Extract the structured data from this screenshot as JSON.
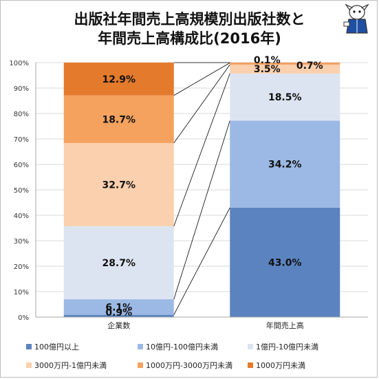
{
  "title": [
    "出版社年間売上高規模別出版社数と",
    "年間売上高構成比(2016年)"
  ],
  "chart_data": {
    "type": "bar",
    "stacked": true,
    "percent_stacked": true,
    "connector_lines": true,
    "categories": [
      "企業数",
      "年間売上高"
    ],
    "ylim": [
      0,
      100
    ],
    "yticks": [
      "0%",
      "10%",
      "20%",
      "30%",
      "40%",
      "50%",
      "60%",
      "70%",
      "80%",
      "90%",
      "100%"
    ],
    "grid": true,
    "legend_position": "bottom",
    "series": [
      {
        "name": "100億円以上",
        "color": "#5b83c0",
        "values": [
          0.9,
          43.0
        ],
        "labels": [
          "0.9%",
          "43.0%"
        ]
      },
      {
        "name": "10億円-100億円未満",
        "color": "#9bb9e4",
        "values": [
          6.1,
          34.2
        ],
        "labels": [
          "6.1%",
          "34.2%"
        ]
      },
      {
        "name": "1億円-10億円未満",
        "color": "#dde4f1",
        "values": [
          28.7,
          18.5
        ],
        "labels": [
          "28.7%",
          "18.5%"
        ]
      },
      {
        "name": "3000万円-1億円未満",
        "color": "#fbd0ae",
        "values": [
          32.7,
          3.5
        ],
        "labels": [
          "32.7%",
          "3.5%"
        ]
      },
      {
        "name": "1000万円-3000万円未満",
        "color": "#f5a25f",
        "values": [
          18.7,
          0.7
        ],
        "labels": [
          "18.7%",
          "0.7%"
        ]
      },
      {
        "name": "1000万円未満",
        "color": "#e47a2c",
        "values": [
          12.9,
          0.1
        ],
        "labels": [
          "12.9%",
          "0.1%"
        ]
      }
    ]
  }
}
